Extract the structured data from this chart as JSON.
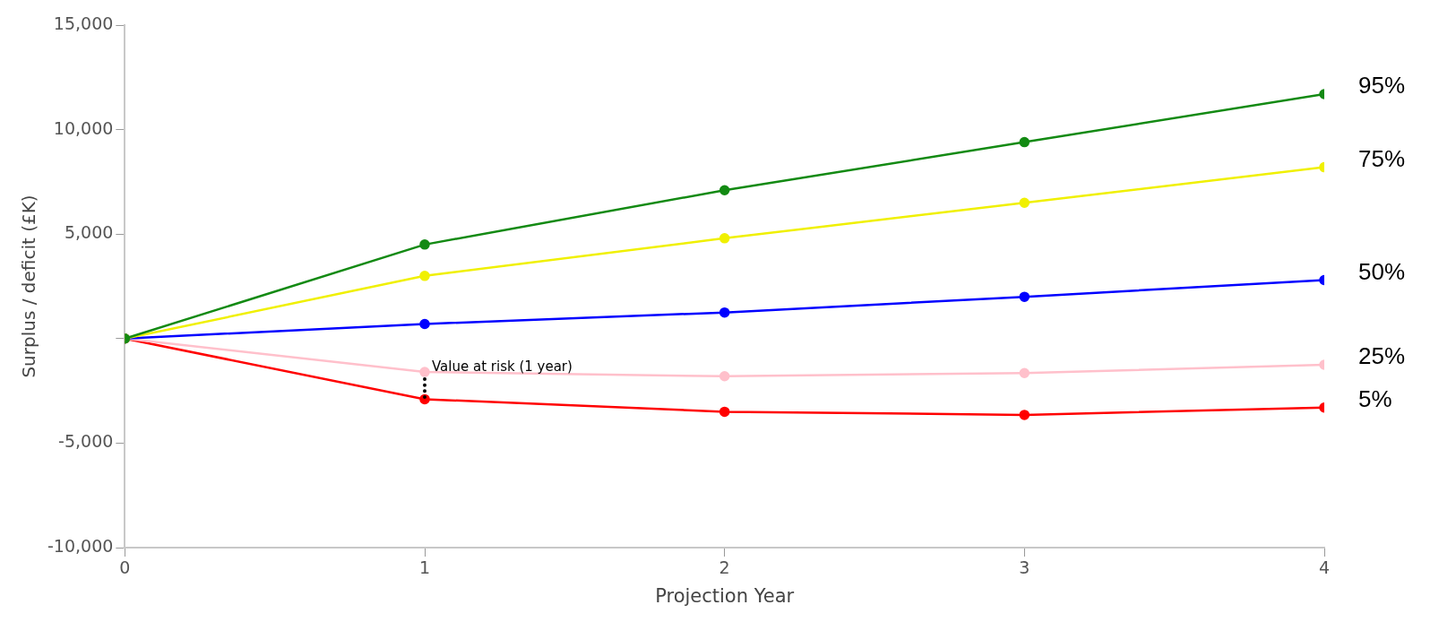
{
  "chart_data": {
    "type": "line",
    "xlabel": "Projection Year",
    "ylabel": "Surplus / deficit (£K)",
    "x": [
      0,
      1,
      2,
      3,
      4
    ],
    "xlim": [
      0,
      4
    ],
    "xticks": [
      0,
      1,
      2,
      3,
      4
    ],
    "ylim": [
      -10000,
      15000
    ],
    "yticks": [
      {
        "value": -10000,
        "label": "-10,000"
      },
      {
        "value": -5000,
        "label": "-5,000"
      },
      {
        "value": 0,
        "label": null
      },
      {
        "value": 5000,
        "label": "5,000"
      },
      {
        "value": 10000,
        "label": "10,000"
      },
      {
        "value": 15000,
        "label": "15,000"
      }
    ],
    "series": [
      {
        "name": "95%",
        "color": "#138a13",
        "values": [
          0,
          4500,
          7100,
          9400,
          11700
        ]
      },
      {
        "name": "75%",
        "color": "#f0f000",
        "values": [
          0,
          3000,
          4800,
          6500,
          8200
        ]
      },
      {
        "name": "50%",
        "color": "#0000ff",
        "values": [
          0,
          700,
          1250,
          2000,
          2800
        ]
      },
      {
        "name": "25%",
        "color": "#ffc0cb",
        "values": [
          0,
          -1600,
          -1800,
          -1650,
          -1250
        ]
      },
      {
        "name": "5%",
        "color": "#ff0000",
        "values": [
          0,
          -2900,
          -3500,
          -3650,
          -3300
        ]
      }
    ],
    "annotations": [
      {
        "text": "Value at risk (1 year)",
        "x": 1,
        "y": -2900
      }
    ],
    "marker": "circle",
    "line_style": "solid",
    "grid": false,
    "legend": false
  }
}
